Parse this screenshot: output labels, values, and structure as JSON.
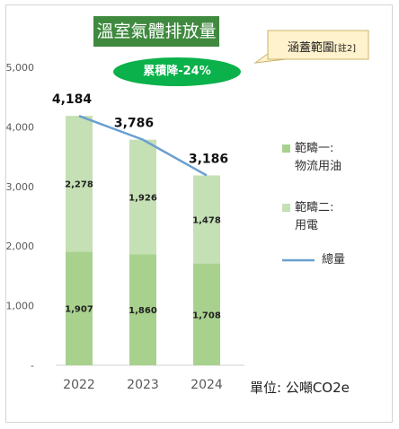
{
  "header": {
    "title": "溫室氣體排放量",
    "badge": "累積降-24%",
    "note_main": "涵蓋範圍",
    "note_ref": "[註2]"
  },
  "unit_label": "單位: 公噸CO2e",
  "colors": {
    "title_bg": "#3f8a3f",
    "badge_bg": "#0bb14a",
    "scope1": "#a9d18e",
    "scope2": "#c5e0b4",
    "total_line": "#6a9fd0"
  },
  "chart_data": {
    "type": "bar",
    "stacked": true,
    "categories": [
      "2022",
      "2023",
      "2024"
    ],
    "series": [
      {
        "name": "範疇一:物流用油",
        "legend_lines": [
          "範疇一:",
          "物流用油"
        ],
        "values": [
          1907,
          1860,
          1708
        ],
        "labels": [
          "1,907",
          "1,860",
          "1,708"
        ],
        "color": "#a9d18e"
      },
      {
        "name": "範疇二:用電",
        "legend_lines": [
          "範疇二:",
          "用電"
        ],
        "values": [
          2278,
          1926,
          1478
        ],
        "labels": [
          "2,278",
          "1,926",
          "1,478"
        ],
        "color": "#c5e0b4"
      }
    ],
    "line": {
      "name": "總量",
      "values": [
        4184,
        3786,
        3186
      ],
      "labels": [
        "4,184",
        "3,786",
        "3,186"
      ],
      "color": "#6a9fd0"
    },
    "ylim": [
      0,
      5000
    ],
    "yticks": [
      0,
      1000,
      2000,
      3000,
      4000,
      5000
    ],
    "ytick_labels": [
      "-",
      "1,000",
      "2,000",
      "3,000",
      "4,000",
      "5,000"
    ],
    "legend_position": "right",
    "grid": false
  }
}
